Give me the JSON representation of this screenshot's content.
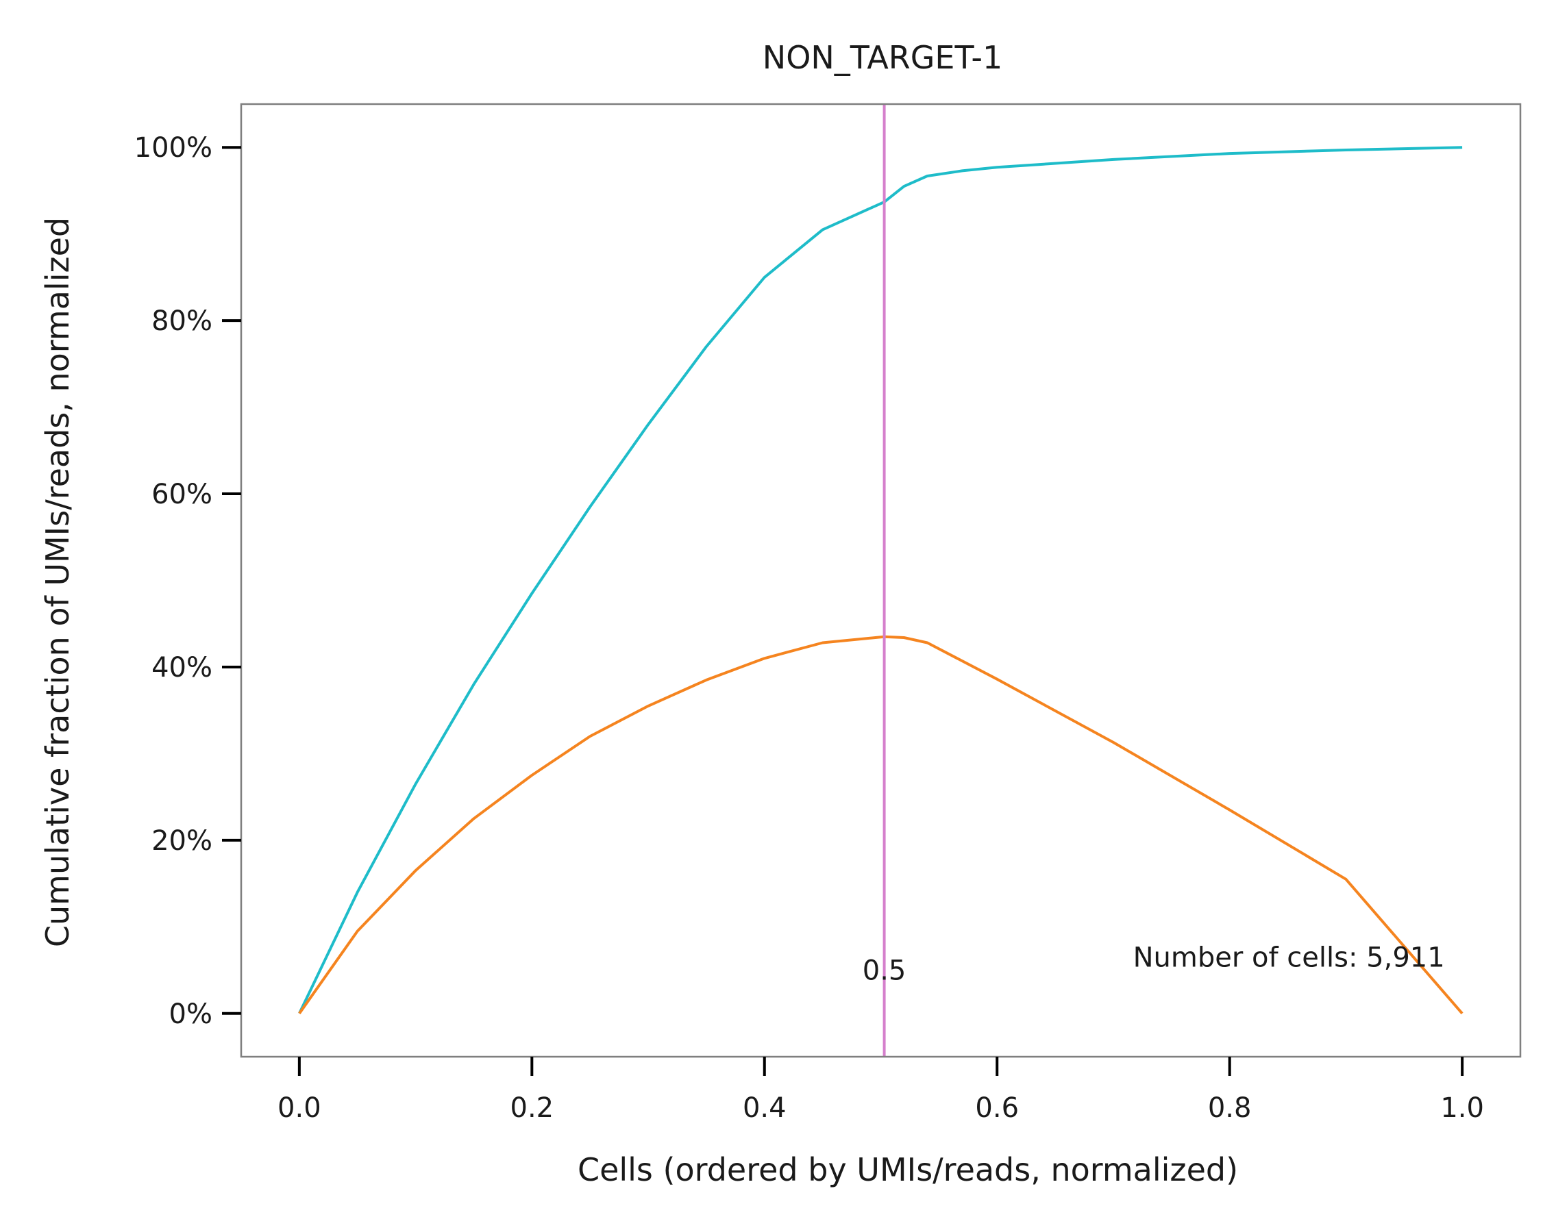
{
  "chart_data": {
    "type": "line",
    "title": "NON_TARGET-1",
    "xlabel": "Cells (ordered by UMIs/reads, normalized)",
    "ylabel": "Cumulative fraction of UMIs/reads, normalized",
    "xlim": [
      -0.05,
      1.05
    ],
    "ylim": [
      -0.05,
      1.05
    ],
    "x_ticks": [
      0.0,
      0.2,
      0.4,
      0.6,
      0.8,
      1.0
    ],
    "x_tick_labels": [
      "0.0",
      "0.2",
      "0.4",
      "0.6",
      "0.8",
      "1.0"
    ],
    "y_ticks": [
      0,
      0.2,
      0.4,
      0.6,
      0.8,
      1.0
    ],
    "y_tick_labels": [
      "0%",
      "20%",
      "40%",
      "60%",
      "80%",
      "100%"
    ],
    "grid": false,
    "series": [
      {
        "color": "#1ebcc9",
        "x": [
          0,
          0.05,
          0.1,
          0.15,
          0.2,
          0.25,
          0.3,
          0.35,
          0.4,
          0.45,
          0.503,
          0.52,
          0.54,
          0.57,
          0.6,
          0.7,
          0.8,
          0.9,
          1.0
        ],
        "y": [
          0,
          0.14,
          0.265,
          0.38,
          0.485,
          0.585,
          0.68,
          0.77,
          0.85,
          0.905,
          0.937,
          0.955,
          0.967,
          0.973,
          0.977,
          0.986,
          0.993,
          0.997,
          1.0
        ]
      },
      {
        "color": "#f5841f",
        "x": [
          0,
          0.05,
          0.1,
          0.15,
          0.2,
          0.25,
          0.3,
          0.35,
          0.4,
          0.45,
          0.503,
          0.52,
          0.54,
          0.6,
          0.7,
          0.8,
          0.9,
          1.0
        ],
        "y": [
          0,
          0.095,
          0.165,
          0.225,
          0.275,
          0.32,
          0.355,
          0.385,
          0.41,
          0.428,
          0.435,
          0.434,
          0.428,
          0.386,
          0.313,
          0.235,
          0.155,
          0.0
        ]
      }
    ],
    "vline": {
      "x": 0.503,
      "color": "#d580cc",
      "label": "0.5"
    },
    "annotations": [
      {
        "text": "Number of cells: 5,911",
        "x": 0.985,
        "y": 0.065
      }
    ]
  }
}
